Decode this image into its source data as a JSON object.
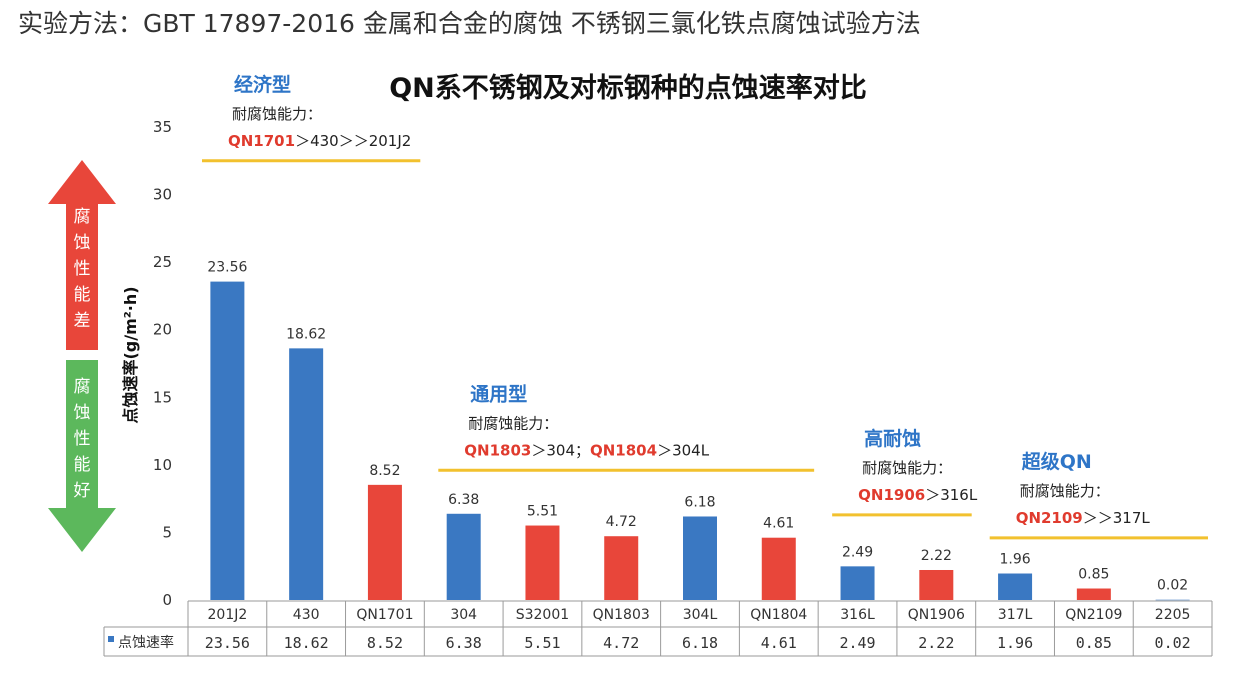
{
  "header": {
    "method_text": "实验方法：GBT 17897-2016 金属和合金的腐蚀 不锈钢三氯化铁点腐蚀试验方法"
  },
  "arrows": {
    "up_text": "腐蚀性能差",
    "down_text": "腐蚀性能好",
    "up_color": "#e8463a",
    "down_color": "#5cb85c"
  },
  "groups": [
    {
      "title": "经济型",
      "subtitle": "耐腐蚀能力：",
      "comparison": [
        {
          "t": "QN1701",
          "hl": true
        },
        {
          "t": "＞430＞＞201J2",
          "hl": false
        }
      ],
      "from": 0,
      "to": 2,
      "line_y": 32.5
    },
    {
      "title": "通用型",
      "subtitle": "耐腐蚀能力：",
      "comparison": [
        {
          "t": "QN1803",
          "hl": true
        },
        {
          "t": "＞304；",
          "hl": false
        },
        {
          "t": "QN1804",
          "hl": true
        },
        {
          "t": "＞304L",
          "hl": false
        }
      ],
      "from": 3,
      "to": 7,
      "line_y": 9.6
    },
    {
      "title": "高耐蚀",
      "subtitle": "耐腐蚀能力：",
      "comparison": [
        {
          "t": "QN1906",
          "hl": true
        },
        {
          "t": "＞316L",
          "hl": false
        }
      ],
      "from": 8,
      "to": 9,
      "line_y": 6.3
    },
    {
      "title": "超级QN",
      "subtitle": "耐腐蚀能力：",
      "comparison": [
        {
          "t": "QN2109",
          "hl": true
        },
        {
          "t": "＞＞317L",
          "hl": false
        }
      ],
      "from": 10,
      "to": 12,
      "line_y": 4.6
    }
  ],
  "chart_data": {
    "type": "bar",
    "title": "QN系不锈钢及对标钢种的点蚀速率对比",
    "ylabel": "点蚀速率(g/m²·h)",
    "xlabel": "",
    "ylim": [
      0,
      35
    ],
    "yticks": [
      0,
      5,
      10,
      15,
      20,
      25,
      30,
      35
    ],
    "grid": false,
    "categories": [
      "201J2",
      "430",
      "QN1701",
      "304",
      "S32001",
      "QN1803",
      "304L",
      "QN1804",
      "316L",
      "QN1906",
      "317L",
      "QN2109",
      "2205"
    ],
    "series": [
      {
        "name": "点蚀速率",
        "values": [
          23.56,
          18.62,
          8.52,
          6.38,
          5.51,
          4.72,
          6.18,
          4.61,
          2.49,
          2.22,
          1.96,
          0.85,
          0.02
        ]
      }
    ],
    "value_labels": [
      "23.56",
      "18.62",
      "8.52",
      "6.38",
      "5.51",
      "4.72",
      "6.18",
      "4.61",
      "2.49",
      "2.22",
      "1.96",
      "0.85",
      "0.02"
    ],
    "table_labels": [
      "23.56",
      "18.62",
      "8.52",
      "6.38",
      "5.51",
      "4.72",
      "6.18",
      "4.61",
      "2.49",
      "2.22",
      "1.96",
      "0.85",
      "0.02"
    ],
    "bar_colors": [
      "#3a78c2",
      "#3a78c2",
      "#e8463a",
      "#3a78c2",
      "#e8463a",
      "#e8463a",
      "#3a78c2",
      "#e8463a",
      "#3a78c2",
      "#e8463a",
      "#3a78c2",
      "#e8463a",
      "#3a78c2"
    ],
    "legend_color": "#3a78c2",
    "group_line_color": "#f2c12e"
  }
}
